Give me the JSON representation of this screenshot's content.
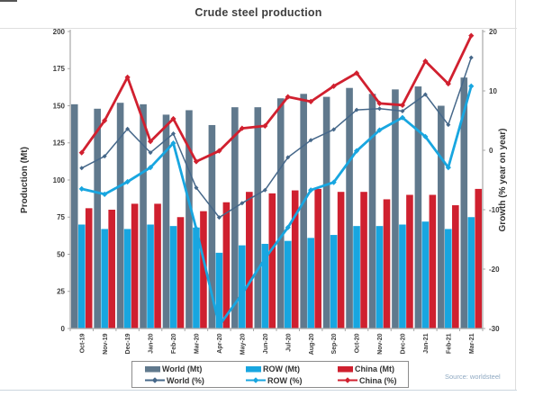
{
  "page": {
    "title": "Crude steel production",
    "source": "Source: worldsteel"
  },
  "chart_data": {
    "type": "combo-bar-line",
    "title": "Crude steel production",
    "categories": [
      "Oct-19",
      "Nov-19",
      "Dec-19",
      "Jan-20",
      "Feb-20",
      "Mar-20",
      "Apr-20",
      "May-20",
      "Jun-20",
      "Jul-20",
      "Aug-20",
      "Sep-20",
      "Oct-20",
      "Nov-20",
      "Dec-20",
      "Jan-21",
      "Feb-21",
      "Mar-21"
    ],
    "bar_series": [
      {
        "name": "World (Mt)",
        "color": "#60798d",
        "axis": "left",
        "values": [
          151,
          148,
          152,
          151,
          144,
          147,
          137,
          149,
          149,
          155,
          158,
          156,
          162,
          158,
          161,
          163,
          150,
          169
        ]
      },
      {
        "name": "ROW (Mt)",
        "color": "#18a6e0",
        "axis": "left",
        "values": [
          70,
          67,
          67,
          70,
          69,
          68,
          51,
          56,
          57,
          59,
          61,
          63,
          69,
          69,
          70,
          72,
          67,
          75
        ]
      },
      {
        "name": "China (Mt)",
        "color": "#cf202f",
        "axis": "left",
        "values": [
          81,
          80,
          84,
          84,
          75,
          79,
          85,
          92,
          91,
          93,
          94,
          92,
          92,
          87,
          90,
          90,
          83,
          94
        ]
      }
    ],
    "line_series": [
      {
        "name": "World (%)",
        "color": "#46688a",
        "axis": "right",
        "stroke_width": 1.5,
        "marker": "diamond",
        "values": [
          -3.0,
          -1.0,
          3.6,
          -0.4,
          2.8,
          -6.3,
          -11.3,
          -8.9,
          -6.7,
          -1.2,
          1.7,
          3.5,
          6.8,
          7.0,
          6.6,
          9.4,
          4.3,
          15.6
        ]
      },
      {
        "name": "ROW (%)",
        "color": "#18a6e0",
        "axis": "right",
        "stroke_width": 2.8,
        "marker": "diamond",
        "values": [
          -6.5,
          -7.4,
          -5.3,
          -2.9,
          1.2,
          -13.2,
          -29.5,
          -24.2,
          -18.2,
          -13.0,
          -6.7,
          -5.4,
          -0.1,
          3.4,
          5.5,
          2.3,
          -2.9,
          10.8
        ]
      },
      {
        "name": "China (%)",
        "color": "#d1202f",
        "axis": "right",
        "stroke_width": 2.8,
        "marker": "diamond",
        "values": [
          -0.4,
          5.0,
          12.3,
          1.5,
          5.3,
          -1.9,
          -0.1,
          3.7,
          4.1,
          9.0,
          8.2,
          10.8,
          13.0,
          7.9,
          7.6,
          15.0,
          11.2,
          19.3
        ]
      }
    ],
    "y_left": {
      "label": "Production (Mt)",
      "min": 0,
      "max": 200,
      "step": 25,
      "ticks": [
        "0",
        "25",
        "50",
        "75",
        "100",
        "125",
        "150",
        "175",
        "200"
      ]
    },
    "y_right": {
      "label": "Growth (% year on year)",
      "min": -30,
      "max": 20,
      "step": 10,
      "ticks": [
        "-30",
        "-20",
        "-10",
        "0",
        "10",
        "20"
      ]
    },
    "grid": false,
    "legend_position": "bottom",
    "legend": {
      "row1": [
        "World (Mt)",
        "ROW (Mt)",
        "China (Mt)"
      ],
      "row2": [
        "World (%)",
        "ROW (%)",
        "China (%)"
      ]
    }
  }
}
